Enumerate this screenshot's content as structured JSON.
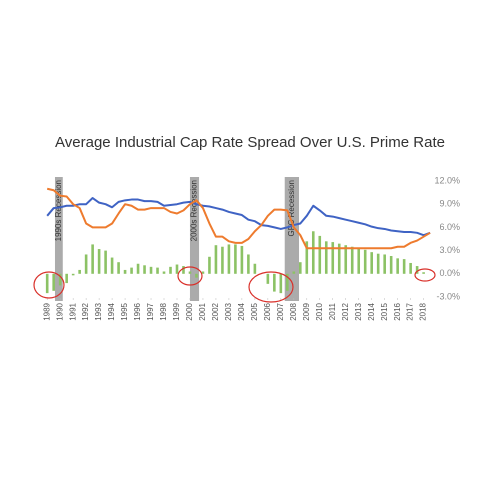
{
  "chart_data": {
    "type": "combo",
    "title": "Average Industrial Cap Rate Spread Over U.S. Prime Rate",
    "x": [
      1989,
      1989.5,
      1990,
      1990.5,
      1991,
      1991.5,
      1992,
      1992.5,
      1993,
      1993.5,
      1994,
      1994.5,
      1995,
      1995.5,
      1996,
      1996.5,
      1997,
      1997.5,
      1998,
      1998.5,
      1999,
      1999.5,
      2000,
      2000.5,
      2001,
      2001.5,
      2002,
      2002.5,
      2003,
      2003.5,
      2004,
      2004.5,
      2005,
      2005.5,
      2006,
      2006.5,
      2007,
      2007.5,
      2008,
      2008.5,
      2009,
      2009.5,
      2010,
      2010.5,
      2011,
      2011.5,
      2012,
      2012.5,
      2013,
      2013.5,
      2014,
      2014.5,
      2015,
      2015.5,
      2016,
      2016.5,
      2017,
      2017.5,
      2018,
      2018.5
    ],
    "series": [
      {
        "kind": "bar",
        "color": "#8cc265",
        "values": [
          -2.5,
          -2.2,
          -1.5,
          -1.2,
          -0.2,
          0.5,
          2.5,
          3.8,
          3.2,
          3.0,
          2.1,
          1.5,
          0.5,
          0.8,
          1.3,
          1.1,
          0.9,
          0.8,
          0.3,
          0.9,
          1.2,
          1.0,
          0.3,
          -0.5,
          0.3,
          2.2,
          3.7,
          3.5,
          3.8,
          3.8,
          3.6,
          2.5,
          1.3,
          0.0,
          -1.3,
          -2.3,
          -2.5,
          -2.2,
          0.3,
          1.5,
          4.2,
          5.5,
          4.9,
          4.2,
          4.1,
          3.9,
          3.7,
          3.5,
          3.3,
          3.1,
          2.8,
          2.6,
          2.5,
          2.3,
          2.0,
          1.9,
          1.4,
          1.0,
          0.2,
          0.0
        ]
      },
      {
        "kind": "line",
        "color": "#3f63c4",
        "values": [
          7.5,
          8.5,
          8.6,
          8.8,
          8.8,
          9.0,
          9.0,
          9.8,
          9.2,
          9.0,
          8.6,
          9.3,
          9.5,
          9.6,
          9.6,
          9.4,
          9.4,
          9.3,
          8.8,
          8.9,
          9.0,
          9.2,
          9.3,
          9.0,
          8.8,
          8.7,
          8.5,
          8.3,
          8.0,
          7.8,
          7.6,
          7.0,
          6.8,
          6.3,
          6.2,
          6.0,
          5.8,
          6.0,
          6.3,
          6.5,
          7.5,
          8.8,
          8.2,
          7.5,
          7.4,
          7.2,
          7.0,
          6.8,
          6.6,
          6.4,
          6.1,
          5.9,
          5.8,
          5.6,
          5.5,
          5.4,
          5.4,
          5.3,
          5.0,
          5.3
        ]
      },
      {
        "kind": "line",
        "color": "#ee7b2e",
        "values": [
          11.0,
          10.8,
          10.1,
          10.0,
          9.0,
          8.5,
          6.5,
          6.0,
          6.0,
          6.0,
          6.5,
          7.8,
          9.0,
          8.8,
          8.3,
          8.3,
          8.5,
          8.5,
          8.5,
          8.0,
          7.8,
          8.2,
          9.0,
          9.5,
          8.5,
          6.5,
          4.8,
          4.8,
          4.2,
          4.0,
          4.0,
          4.5,
          5.5,
          6.3,
          7.5,
          8.3,
          8.3,
          8.2,
          6.0,
          5.0,
          3.3,
          3.3,
          3.3,
          3.3,
          3.3,
          3.3,
          3.3,
          3.3,
          3.3,
          3.3,
          3.3,
          3.3,
          3.3,
          3.3,
          3.5,
          3.5,
          4.0,
          4.3,
          4.8,
          5.3
        ]
      }
    ],
    "recessions": [
      {
        "label": "1990s Recession",
        "start": 1989.6,
        "end": 1990.2
      },
      {
        "label": "2000s Recession",
        "start": 2000.0,
        "end": 2000.7
      },
      {
        "label": "GFC Recession",
        "start": 2007.3,
        "end": 2008.4
      }
    ],
    "xlim": [
      1988.6,
      2018.8
    ],
    "xticks": [
      1989,
      1990,
      1991,
      1992,
      1993,
      1994,
      1995,
      1996,
      1997,
      1998,
      1999,
      2000,
      2001,
      2002,
      2003,
      2004,
      2005,
      2006,
      2007,
      2008,
      2009,
      2010,
      2011,
      2012,
      2013,
      2014,
      2015,
      2016,
      2017,
      2018
    ],
    "ylim": [
      -3,
      12
    ],
    "yticks": [
      {
        "value": -3,
        "label": "-3.0%"
      },
      {
        "value": 0,
        "label": "0.0%"
      },
      {
        "value": 3,
        "label": "3.0%"
      },
      {
        "value": 6,
        "label": "6.0%"
      },
      {
        "value": 9,
        "label": "9.0%"
      },
      {
        "value": 12,
        "label": "12.0%"
      }
    ],
    "grid": false
  }
}
